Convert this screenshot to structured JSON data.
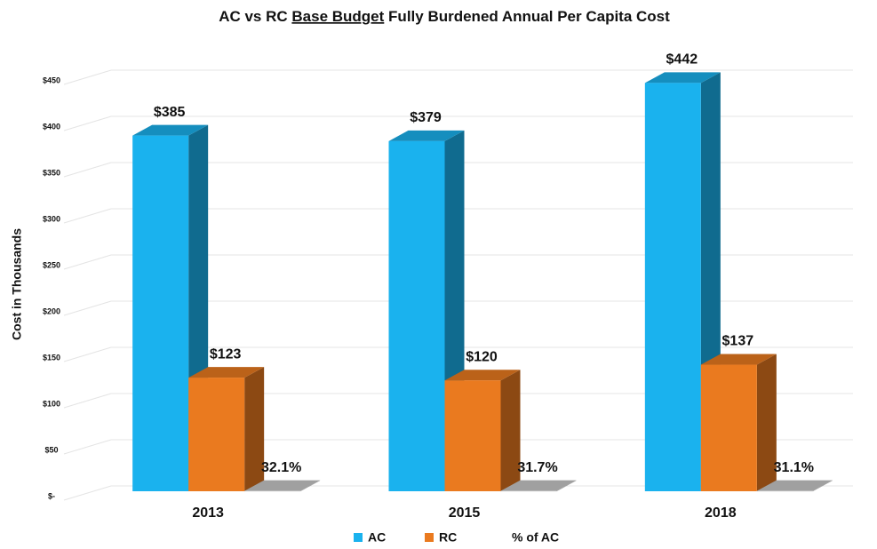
{
  "chart_data": {
    "type": "bar3d",
    "title": {
      "before": "AC vs RC",
      "underlined": "Base Budget",
      "after": "Fully Burdened Annual Per Capita Cost"
    },
    "y_label": "Cost in Thousands",
    "categories": [
      "2013",
      "2015",
      "2018"
    ],
    "series": [
      {
        "name": "AC",
        "color": "#1ab2ee",
        "values": [
          385,
          379,
          442
        ],
        "value_labels": [
          "$385",
          "$379",
          "$442"
        ]
      },
      {
        "name": "RC",
        "color": "#ea7a1f",
        "values": [
          123,
          120,
          137
        ],
        "value_labels": [
          "$123",
          "$120",
          "$137"
        ]
      },
      {
        "name": "% of AC",
        "color": "#c8c8c8",
        "values": [
          0.321,
          0.317,
          0.311
        ],
        "value_labels": [
          "32.1%",
          "31.7%",
          "31.1%"
        ]
      }
    ],
    "ylim": [
      0,
      450
    ],
    "yticks": [
      {
        "value": 0,
        "label": "$-"
      },
      {
        "value": 50,
        "label": "$50"
      },
      {
        "value": 100,
        "label": "$100"
      },
      {
        "value": 150,
        "label": "$150"
      },
      {
        "value": 200,
        "label": "$200"
      },
      {
        "value": 250,
        "label": "$250"
      },
      {
        "value": 300,
        "label": "$300"
      },
      {
        "value": 350,
        "label": "$350"
      },
      {
        "value": 400,
        "label": "$400"
      },
      {
        "value": 450,
        "label": "$450"
      }
    ],
    "grid": true,
    "legend": "bottom"
  }
}
